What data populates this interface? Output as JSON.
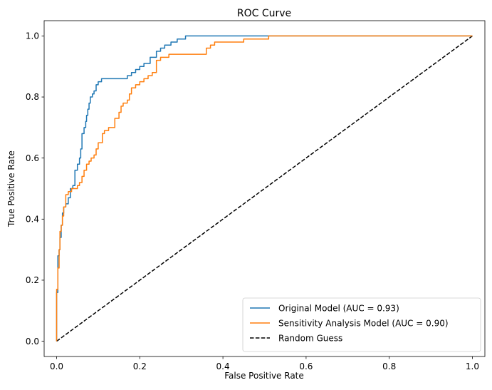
{
  "chart_data": {
    "type": "line",
    "title": "ROC Curve",
    "xlabel": "False Positive Rate",
    "ylabel": "True Positive Rate",
    "xlim": [
      -0.03,
      1.03
    ],
    "ylim": [
      -0.05,
      1.05
    ],
    "xticks": [
      0.0,
      0.2,
      0.4,
      0.6,
      0.8,
      1.0
    ],
    "yticks": [
      0.0,
      0.2,
      0.4,
      0.6,
      0.8,
      1.0
    ],
    "xtick_labels": [
      "0.0",
      "0.2",
      "0.4",
      "0.6",
      "0.8",
      "1.0"
    ],
    "ytick_labels": [
      "0.0",
      "0.2",
      "0.4",
      "0.6",
      "0.8",
      "1.0"
    ],
    "grid": false,
    "legend_position": "bottom-right",
    "series": [
      {
        "name": "Original Model (AUC = 0.93)",
        "color": "#1f77b4",
        "style": "solid",
        "x": [
          0,
          0,
          0.003,
          0.003,
          0.006,
          0.006,
          0.008,
          0.008,
          0.011,
          0.011,
          0.014,
          0.014,
          0.017,
          0.017,
          0.022,
          0.022,
          0.028,
          0.028,
          0.033,
          0.033,
          0.039,
          0.039,
          0.044,
          0.044,
          0.05,
          0.05,
          0.055,
          0.055,
          0.058,
          0.058,
          0.061,
          0.061,
          0.066,
          0.066,
          0.07,
          0.07,
          0.072,
          0.072,
          0.075,
          0.075,
          0.078,
          0.078,
          0.081,
          0.081,
          0.086,
          0.086,
          0.09,
          0.09,
          0.095,
          0.095,
          0.1,
          0.1,
          0.108,
          0.108,
          0.114,
          0.114,
          0.17,
          0.17,
          0.18,
          0.18,
          0.19,
          0.19,
          0.2,
          0.2,
          0.21,
          0.21,
          0.225,
          0.225,
          0.24,
          0.24,
          0.25,
          0.25,
          0.26,
          0.26,
          0.275,
          0.275,
          0.29,
          0.29,
          0.31,
          0.31,
          0.46,
          0.46,
          0.51,
          1.0
        ],
        "y": [
          0,
          0.16,
          0.16,
          0.28,
          0.28,
          0.3,
          0.3,
          0.34,
          0.34,
          0.38,
          0.38,
          0.42,
          0.42,
          0.44,
          0.44,
          0.45,
          0.45,
          0.47,
          0.47,
          0.5,
          0.5,
          0.51,
          0.51,
          0.56,
          0.56,
          0.58,
          0.58,
          0.6,
          0.6,
          0.63,
          0.63,
          0.68,
          0.68,
          0.7,
          0.7,
          0.72,
          0.72,
          0.74,
          0.74,
          0.76,
          0.76,
          0.78,
          0.78,
          0.8,
          0.8,
          0.81,
          0.81,
          0.82,
          0.82,
          0.84,
          0.84,
          0.85,
          0.85,
          0.86,
          0.86,
          0.86,
          0.86,
          0.87,
          0.87,
          0.88,
          0.88,
          0.89,
          0.89,
          0.9,
          0.9,
          0.91,
          0.91,
          0.93,
          0.93,
          0.95,
          0.95,
          0.96,
          0.96,
          0.97,
          0.97,
          0.98,
          0.98,
          0.99,
          0.99,
          1.0,
          1.0,
          1.0,
          1.0,
          1.0
        ]
      },
      {
        "name": "Sensitivity Analysis Model (AUC = 0.90)",
        "color": "#ff7f0e",
        "style": "solid",
        "x": [
          0,
          0,
          0.003,
          0.003,
          0.006,
          0.006,
          0.008,
          0.008,
          0.011,
          0.011,
          0.014,
          0.014,
          0.017,
          0.017,
          0.022,
          0.022,
          0.028,
          0.028,
          0.036,
          0.036,
          0.044,
          0.044,
          0.05,
          0.05,
          0.055,
          0.055,
          0.061,
          0.061,
          0.066,
          0.066,
          0.072,
          0.072,
          0.078,
          0.078,
          0.083,
          0.083,
          0.09,
          0.09,
          0.095,
          0.095,
          0.1,
          0.1,
          0.11,
          0.11,
          0.115,
          0.115,
          0.125,
          0.125,
          0.14,
          0.14,
          0.15,
          0.15,
          0.155,
          0.155,
          0.16,
          0.16,
          0.17,
          0.17,
          0.175,
          0.175,
          0.18,
          0.18,
          0.19,
          0.19,
          0.2,
          0.2,
          0.21,
          0.21,
          0.22,
          0.22,
          0.23,
          0.23,
          0.24,
          0.24,
          0.25,
          0.25,
          0.27,
          0.27,
          0.36,
          0.36,
          0.37,
          0.37,
          0.38,
          0.38,
          0.45,
          0.45,
          0.51,
          0.51,
          1.0
        ],
        "y": [
          0,
          0.17,
          0.17,
          0.24,
          0.24,
          0.3,
          0.3,
          0.36,
          0.36,
          0.38,
          0.38,
          0.41,
          0.41,
          0.44,
          0.44,
          0.48,
          0.48,
          0.49,
          0.49,
          0.5,
          0.5,
          0.5,
          0.5,
          0.51,
          0.51,
          0.52,
          0.52,
          0.54,
          0.54,
          0.56,
          0.56,
          0.58,
          0.58,
          0.59,
          0.59,
          0.6,
          0.6,
          0.61,
          0.61,
          0.63,
          0.63,
          0.65,
          0.65,
          0.68,
          0.68,
          0.69,
          0.69,
          0.7,
          0.7,
          0.73,
          0.73,
          0.75,
          0.75,
          0.77,
          0.77,
          0.78,
          0.78,
          0.79,
          0.79,
          0.81,
          0.81,
          0.83,
          0.83,
          0.84,
          0.84,
          0.85,
          0.85,
          0.86,
          0.86,
          0.87,
          0.87,
          0.88,
          0.88,
          0.92,
          0.92,
          0.93,
          0.93,
          0.94,
          0.94,
          0.96,
          0.96,
          0.97,
          0.97,
          0.98,
          0.98,
          0.99,
          0.99,
          1.0,
          1.0
        ]
      },
      {
        "name": "Random Guess",
        "color": "#000000",
        "style": "dashed",
        "x": [
          0,
          1
        ],
        "y": [
          0,
          1
        ]
      }
    ]
  }
}
